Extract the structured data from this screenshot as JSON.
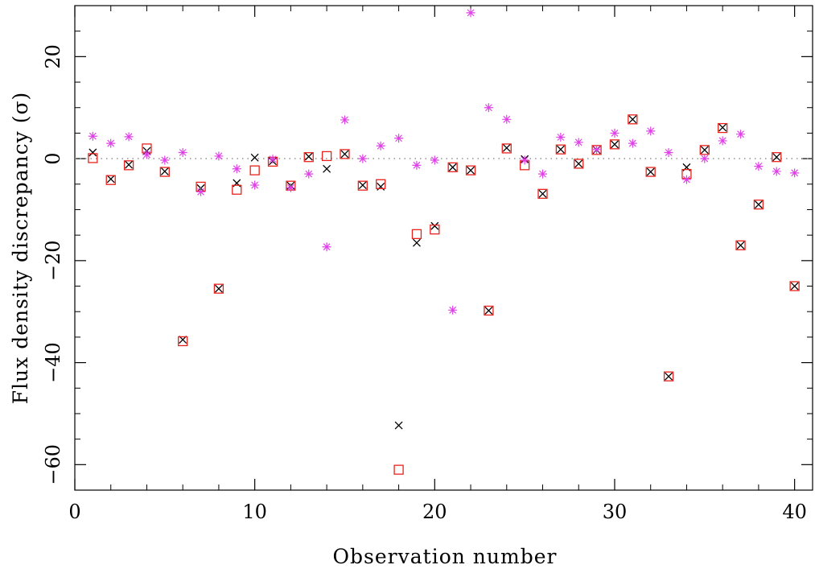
{
  "chart_data": {
    "type": "scatter",
    "xlabel": "Observation number",
    "ylabel": "Flux density discrepancy (σ)",
    "xlim": [
      0,
      41
    ],
    "ylim": [
      -65,
      30
    ],
    "x_ticks": [
      0,
      10,
      20,
      30,
      40
    ],
    "y_ticks": [
      -60,
      -40,
      -20,
      0,
      20
    ],
    "x_minor_step": 2,
    "y_minor_step": 5,
    "reference_line": {
      "y": 0,
      "style": "dotted"
    },
    "grid": false,
    "legend": "none",
    "x": [
      1,
      2,
      3,
      4,
      5,
      6,
      7,
      8,
      9,
      10,
      11,
      12,
      13,
      14,
      15,
      16,
      17,
      18,
      19,
      20,
      21,
      22,
      23,
      24,
      25,
      26,
      27,
      28,
      29,
      30,
      31,
      32,
      33,
      34,
      35,
      36,
      37,
      38,
      39,
      40
    ],
    "series": [
      {
        "marker": "cross",
        "color": "#000000",
        "values": [
          1.2,
          -4,
          -1.2,
          1.5,
          -2.5,
          -35.5,
          -5.8,
          -25.5,
          -4.8,
          0.2,
          -0.5,
          -5.3,
          0.4,
          -2,
          0.9,
          -5.2,
          -5.5,
          -52.3,
          -16.5,
          -13.2,
          -1.7,
          -2.3,
          -29.8,
          2.1,
          -0.1,
          -6.9,
          1.8,
          -1,
          1.7,
          2.8,
          7.7,
          -2.6,
          -42.7,
          -1.7,
          1.7,
          6.1,
          -17,
          -9,
          0.3,
          -25
        ]
      },
      {
        "marker": "square",
        "color": "#e8221c",
        "values": [
          0.1,
          -4.2,
          -1.3,
          2,
          -2.6,
          -35.8,
          -5.5,
          -25.5,
          -6.1,
          -2.3,
          -0.6,
          -5.3,
          0.3,
          0.5,
          0.9,
          -5.3,
          -5,
          -61,
          -14.8,
          -13.9,
          -1.7,
          -2.3,
          -29.8,
          2,
          -1.3,
          -6.9,
          1.8,
          -1,
          1.7,
          2.8,
          7.7,
          -2.6,
          -42.7,
          -3,
          1.7,
          6,
          -17,
          -9,
          0.3,
          -25
        ]
      },
      {
        "marker": "asterisk",
        "color": "#e040e8",
        "values": [
          4.4,
          3,
          4.3,
          0.8,
          -0.3,
          1.2,
          -6.5,
          0.5,
          -2,
          -5.2,
          -0.1,
          -5.7,
          -3,
          -17.3,
          7.6,
          0,
          2.5,
          4,
          -1.3,
          -0.3,
          -29.7,
          28.6,
          10,
          7.7,
          -0.3,
          -3,
          4.2,
          3.2,
          1.8,
          5,
          3,
          5.4,
          1.2,
          -4.1,
          0,
          3.5,
          4.8,
          -1.5,
          -2.5,
          -2.8
        ]
      }
    ]
  }
}
